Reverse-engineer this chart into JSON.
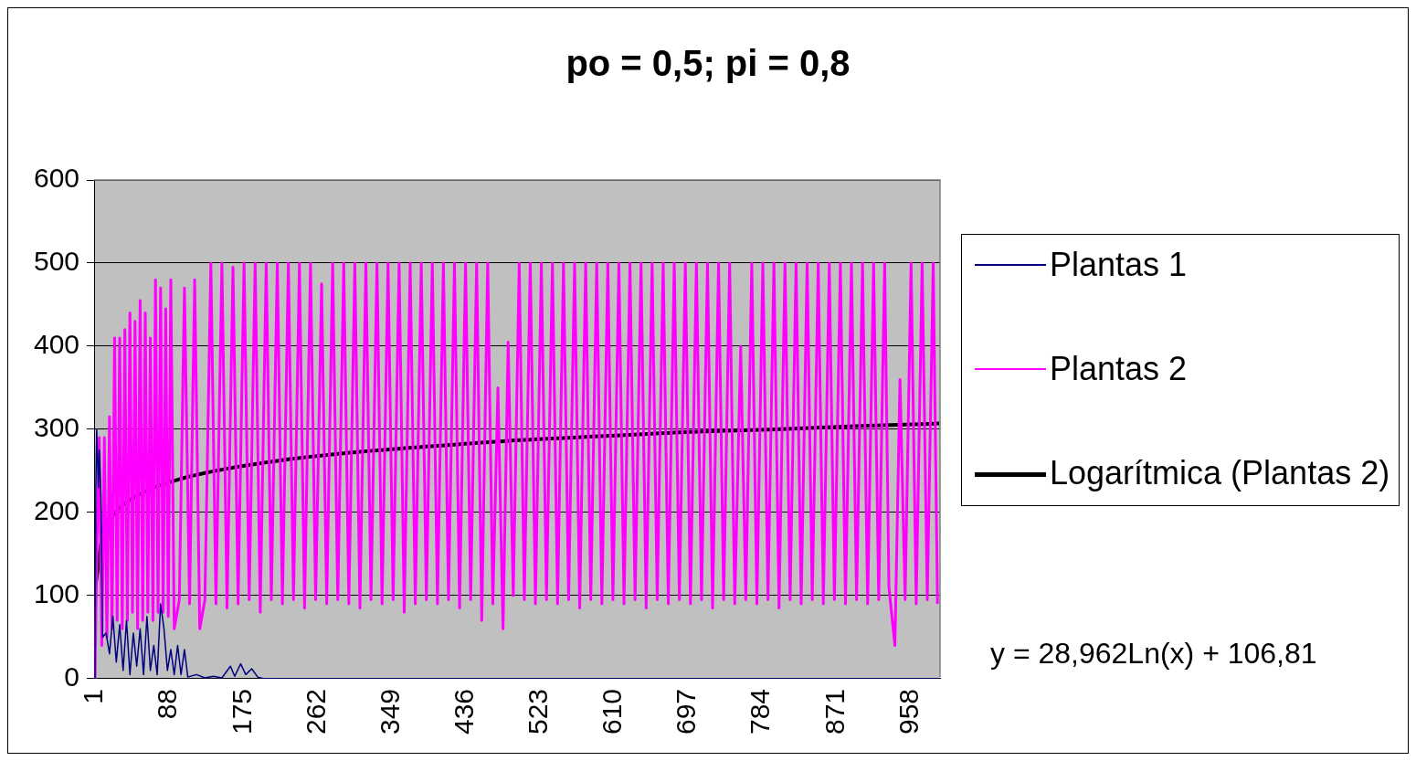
{
  "chart_data": {
    "type": "line",
    "title": "po = 0,5; pi = 0,8",
    "xlim": [
      0,
      993
    ],
    "xticks": [
      1,
      88,
      175,
      262,
      349,
      436,
      523,
      610,
      697,
      784,
      871,
      958
    ],
    "ylim": [
      0,
      600
    ],
    "yticks": [
      0,
      100,
      200,
      300,
      400,
      500,
      600
    ],
    "grid": "y",
    "legend": "right",
    "marker": "none",
    "annotations": [
      "y = 28,962Ln(x) + 106,81"
    ],
    "series": [
      {
        "name": "Plantas 1",
        "color": "#000080",
        "x": [
          1,
          2,
          3,
          5,
          6,
          8,
          10,
          14,
          18,
          22,
          26,
          30,
          34,
          38,
          42,
          46,
          50,
          54,
          58,
          62,
          66,
          70,
          74,
          78,
          82,
          86,
          90,
          94,
          98,
          102,
          106,
          110,
          120,
          130,
          140,
          150,
          160,
          165,
          172,
          178,
          185,
          192,
          200,
          992
        ],
        "values": [
          0,
          230,
          300,
          230,
          275,
          220,
          50,
          55,
          30,
          75,
          20,
          65,
          10,
          70,
          5,
          55,
          15,
          60,
          5,
          75,
          10,
          40,
          5,
          90,
          60,
          10,
          35,
          5,
          40,
          5,
          35,
          2,
          5,
          1,
          3,
          1,
          15,
          3,
          18,
          5,
          12,
          2,
          0,
          0
        ]
      },
      {
        "name": "Plantas 2",
        "color": "#ff00ff",
        "x": [
          1,
          3,
          6,
          9,
          12,
          15,
          18,
          21,
          24,
          27,
          30,
          33,
          36,
          39,
          42,
          45,
          48,
          51,
          54,
          57,
          60,
          63,
          66,
          69,
          72,
          75,
          78,
          81,
          84,
          87,
          90,
          94,
          100,
          106,
          112,
          118,
          124,
          130,
          137,
          143,
          150,
          156,
          163,
          169,
          176,
          182,
          189,
          195,
          202,
          208,
          215,
          221,
          228,
          234,
          241,
          247,
          254,
          260,
          267,
          273,
          280,
          286,
          293,
          299,
          306,
          312,
          319,
          325,
          332,
          338,
          345,
          351,
          358,
          364,
          371,
          377,
          384,
          390,
          397,
          403,
          410,
          416,
          423,
          429,
          436,
          442,
          449,
          455,
          462,
          468,
          474,
          480,
          486,
          492,
          499,
          505,
          512,
          518,
          525,
          531,
          538,
          544,
          551,
          557,
          564,
          570,
          577,
          583,
          590,
          596,
          603,
          609,
          616,
          622,
          629,
          635,
          642,
          648,
          655,
          661,
          668,
          674,
          681,
          687,
          694,
          700,
          707,
          713,
          720,
          726,
          733,
          739,
          746,
          752,
          759,
          765,
          772,
          778,
          785,
          791,
          798,
          804,
          811,
          817,
          824,
          830,
          837,
          843,
          850,
          856,
          863,
          869,
          876,
          882,
          889,
          895,
          902,
          908,
          915,
          921,
          928,
          933,
          940,
          946,
          952,
          959,
          965,
          972,
          978,
          985,
          990
        ],
        "values": [
          0,
          150,
          290,
          40,
          290,
          50,
          315,
          60,
          410,
          70,
          410,
          60,
          420,
          70,
          440,
          80,
          430,
          60,
          455,
          70,
          440,
          80,
          410,
          70,
          480,
          80,
          470,
          80,
          445,
          75,
          480,
          60,
          95,
          470,
          90,
          480,
          60,
          95,
          500,
          90,
          500,
          85,
          495,
          90,
          500,
          95,
          500,
          80,
          500,
          95,
          500,
          90,
          500,
          95,
          500,
          85,
          500,
          95,
          475,
          90,
          500,
          95,
          500,
          90,
          500,
          85,
          500,
          95,
          500,
          90,
          500,
          95,
          500,
          80,
          500,
          90,
          500,
          95,
          500,
          90,
          500,
          95,
          500,
          85,
          500,
          95,
          500,
          70,
          500,
          90,
          350,
          60,
          405,
          100,
          500,
          95,
          500,
          90,
          500,
          95,
          500,
          90,
          500,
          95,
          500,
          85,
          500,
          95,
          500,
          90,
          500,
          95,
          500,
          90,
          500,
          95,
          500,
          85,
          500,
          95,
          500,
          90,
          500,
          95,
          500,
          90,
          500,
          95,
          500,
          85,
          500,
          95,
          500,
          90,
          400,
          95,
          500,
          90,
          500,
          95,
          500,
          85,
          500,
          95,
          500,
          90,
          500,
          95,
          500,
          90,
          500,
          95,
          500,
          90,
          500,
          95,
          500,
          90,
          500,
          95,
          500,
          110,
          40,
          360,
          95,
          500,
          90,
          500,
          95,
          500,
          90
        ]
      },
      {
        "name": "Logarítmica (Plantas 2)",
        "color": "#000000",
        "x": [
          1,
          10,
          25,
          50,
          100,
          200,
          300,
          400,
          500,
          600,
          700,
          800,
          900,
          992
        ],
        "values": [
          107,
          173,
          200,
          220,
          240,
          260,
          272,
          280,
          287,
          292,
          297,
          300,
          304,
          307
        ]
      }
    ]
  }
}
